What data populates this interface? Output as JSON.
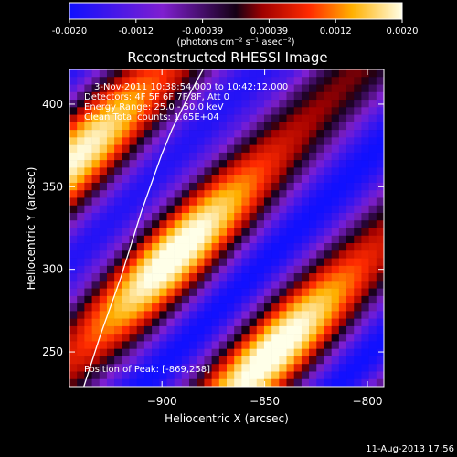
{
  "colorbar": {
    "ticks": [
      "-0.0020",
      "-0.0012",
      "-0.00039",
      "0.00039",
      "0.0012",
      "0.0020"
    ],
    "range": [
      -0.002,
      0.002
    ],
    "colormap": "rhessi-red-temperature"
  },
  "colorbar_units": "(photons cm⁻² s⁻¹ asec⁻²)",
  "title": "Reconstructed RHESSI Image",
  "info_lines": [
    "3-Nov-2011 10:38:54.000 to 10:42:12.000",
    "Detectors: 4F 5F 6F 7F 8F, Att 0",
    "Energy Range: 25.0 - 50.0 keV",
    "Clean    Total counts: 1.65E+04"
  ],
  "peak_label": "Position of Peak: [-869,258]",
  "timestamp": "11-Aug-2013 17:56",
  "chart_data": {
    "type": "heatmap",
    "title": "Reconstructed RHESSI Image",
    "xlabel": "Heliocentric X (arcsec)",
    "ylabel": "Heliocentric Y (arcsec)",
    "xlim": [
      -945,
      -792
    ],
    "ylim": [
      229,
      421
    ],
    "x_ticks": [
      -900,
      -850,
      -800
    ],
    "x_tick_labels": [
      "−900",
      "−850",
      "−800"
    ],
    "y_ticks": [
      250,
      300,
      350,
      400
    ],
    "y_tick_labels": [
      "250",
      "300",
      "350",
      "400"
    ],
    "peak": [
      -869,
      258
    ],
    "grid": false,
    "limb_curve": [
      [
        -938,
        229
      ],
      [
        -930,
        260
      ],
      [
        -920,
        295
      ],
      [
        -910,
        335
      ],
      [
        -900,
        370
      ],
      [
        -895,
        385
      ],
      [
        -887,
        405
      ],
      [
        -880,
        421
      ]
    ]
  }
}
